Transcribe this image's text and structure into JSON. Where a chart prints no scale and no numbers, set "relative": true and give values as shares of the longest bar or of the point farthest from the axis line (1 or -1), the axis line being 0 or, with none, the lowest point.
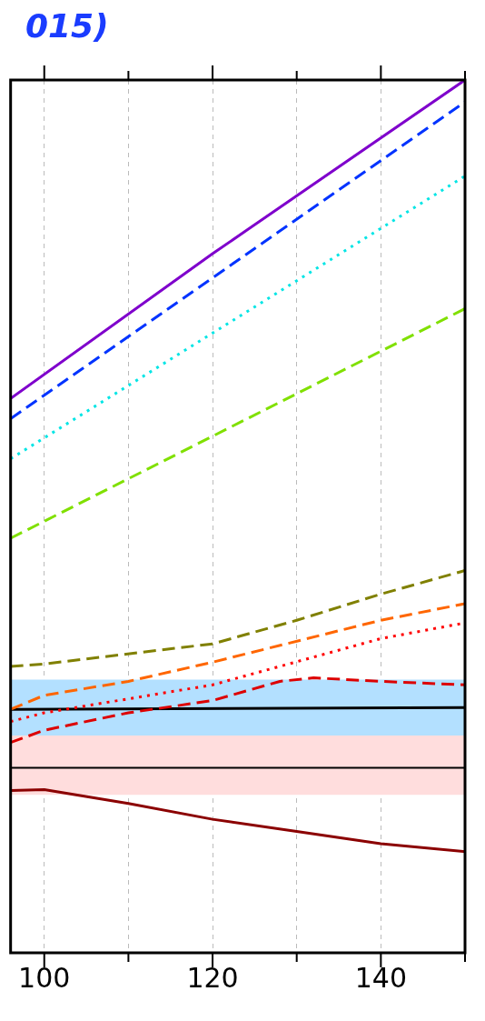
{
  "chart_data": {
    "type": "line",
    "title": "015)",
    "relative": true,
    "grid": "x",
    "xlim": [
      96,
      150
    ],
    "xticks": [
      100,
      {
        "value": 110,
        "label": null
      },
      120,
      {
        "value": 130,
        "label": null
      },
      140,
      {
        "value": 150,
        "label": null
      }
    ],
    "bands": [
      {
        "axis": "y",
        "from": 0.249,
        "to": 0.313,
        "color": "#b3e0ff"
      },
      {
        "axis": "y",
        "from": 0.181,
        "to": 0.249,
        "color": "#ffdddd"
      }
    ],
    "ref_lines": [
      {
        "axis": "y",
        "value": 0.212,
        "color": "#000000"
      }
    ],
    "series": [
      {
        "color": "#7f00cc",
        "line_style": "solid",
        "x": [
          96,
          120,
          150
        ],
        "values": [
          0.635,
          0.801,
          1.0
        ]
      },
      {
        "color": "#0033ff",
        "line_style": "dashed",
        "x": [
          96,
          150
        ],
        "values": [
          0.612,
          0.975
        ]
      },
      {
        "color": "#00e5e5",
        "line_style": "dotted",
        "x": [
          96,
          150
        ],
        "values": [
          0.566,
          0.89
        ]
      },
      {
        "color": "#80e000",
        "line_style": "dashed",
        "x": [
          96,
          150
        ],
        "values": [
          0.475,
          0.738
        ]
      },
      {
        "color": "#808000",
        "line_style": "dashed",
        "x": [
          96,
          100,
          120,
          130,
          140,
          150
        ],
        "values": [
          0.328,
          0.331,
          0.354,
          0.381,
          0.411,
          0.438
        ]
      },
      {
        "color": "#ff6600",
        "line_style": "dashed",
        "x": [
          96,
          100,
          110,
          120,
          140,
          150
        ],
        "values": [
          0.279,
          0.295,
          0.311,
          0.333,
          0.381,
          0.4
        ]
      },
      {
        "color": "#ff0000",
        "line_style": "dotted",
        "x": [
          96,
          100,
          120,
          140,
          150
        ],
        "values": [
          0.265,
          0.275,
          0.307,
          0.36,
          0.378
        ]
      },
      {
        "color": "#dd0000",
        "line_style": "dashed",
        "x": [
          96,
          100,
          110,
          120,
          128,
          132,
          140,
          150
        ],
        "values": [
          0.241,
          0.255,
          0.275,
          0.289,
          0.311,
          0.315,
          0.311,
          0.307
        ]
      },
      {
        "color": "#000000",
        "line_style": "solid",
        "x": [
          96,
          150
        ],
        "values": [
          0.279,
          0.281
        ]
      },
      {
        "color": "#8b0000",
        "line_style": "solid",
        "x": [
          96,
          100,
          110,
          120,
          130,
          140,
          150
        ],
        "values": [
          0.186,
          0.187,
          0.171,
          0.153,
          0.139,
          0.125,
          0.116
        ]
      }
    ]
  }
}
